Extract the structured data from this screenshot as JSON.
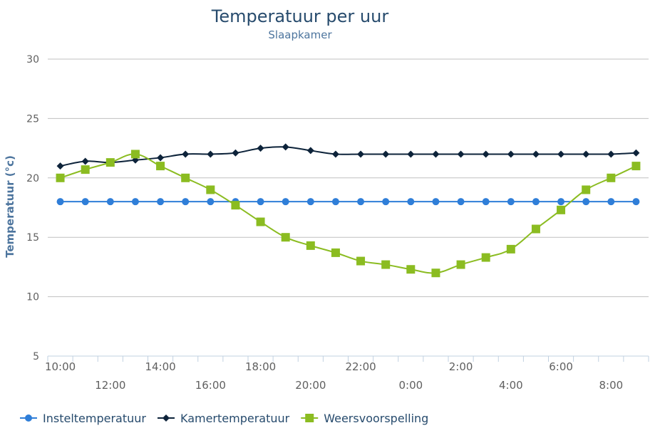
{
  "chart_data": {
    "type": "line",
    "title": "Temperatuur per uur",
    "subtitle": "Slaapkamer",
    "ylabel": "Temperatuur (°c)",
    "xlabel": "",
    "ylim": [
      5,
      30
    ],
    "yticks": [
      5,
      10,
      15,
      20,
      25,
      30
    ],
    "grid": true,
    "legend": "bottom-left",
    "x": [
      "10:00",
      "11:00",
      "12:00",
      "13:00",
      "14:00",
      "15:00",
      "16:00",
      "17:00",
      "18:00",
      "19:00",
      "20:00",
      "21:00",
      "22:00",
      "23:00",
      "0:00",
      "1:00",
      "2:00",
      "3:00",
      "4:00",
      "5:00",
      "6:00",
      "7:00",
      "8:00",
      "9:00"
    ],
    "xticks_row1": [
      "10:00",
      "14:00",
      "18:00",
      "22:00",
      "2:00",
      "6:00"
    ],
    "xticks_row2": [
      "12:00",
      "16:00",
      "20:00",
      "0:00",
      "4:00",
      "8:00"
    ],
    "series": [
      {
        "name": "Insteltemperatuur",
        "color": "#2f7ed8",
        "marker": "circle",
        "values": [
          18,
          18,
          18,
          18,
          18,
          18,
          18,
          18,
          18,
          18,
          18,
          18,
          18,
          18,
          18,
          18,
          18,
          18,
          18,
          18,
          18,
          18,
          18,
          18
        ]
      },
      {
        "name": "Kamertemperatuur",
        "color": "#0d233a",
        "marker": "diamond",
        "values": [
          21,
          21.4,
          21.3,
          21.5,
          21.7,
          22,
          22,
          22.1,
          22.5,
          22.6,
          22.3,
          22,
          22,
          22,
          22,
          22,
          22,
          22,
          22,
          22,
          22,
          22,
          22,
          22.1
        ]
      },
      {
        "name": "Weersvoorspelling",
        "color": "#8bbc21",
        "marker": "square",
        "values": [
          20,
          20.7,
          21.3,
          22,
          21,
          20,
          19,
          17.7,
          16.3,
          15,
          14.3,
          13.7,
          13,
          12.7,
          12.3,
          12,
          12.7,
          13.3,
          14,
          15.7,
          17.3,
          19,
          20,
          21
        ]
      }
    ]
  }
}
